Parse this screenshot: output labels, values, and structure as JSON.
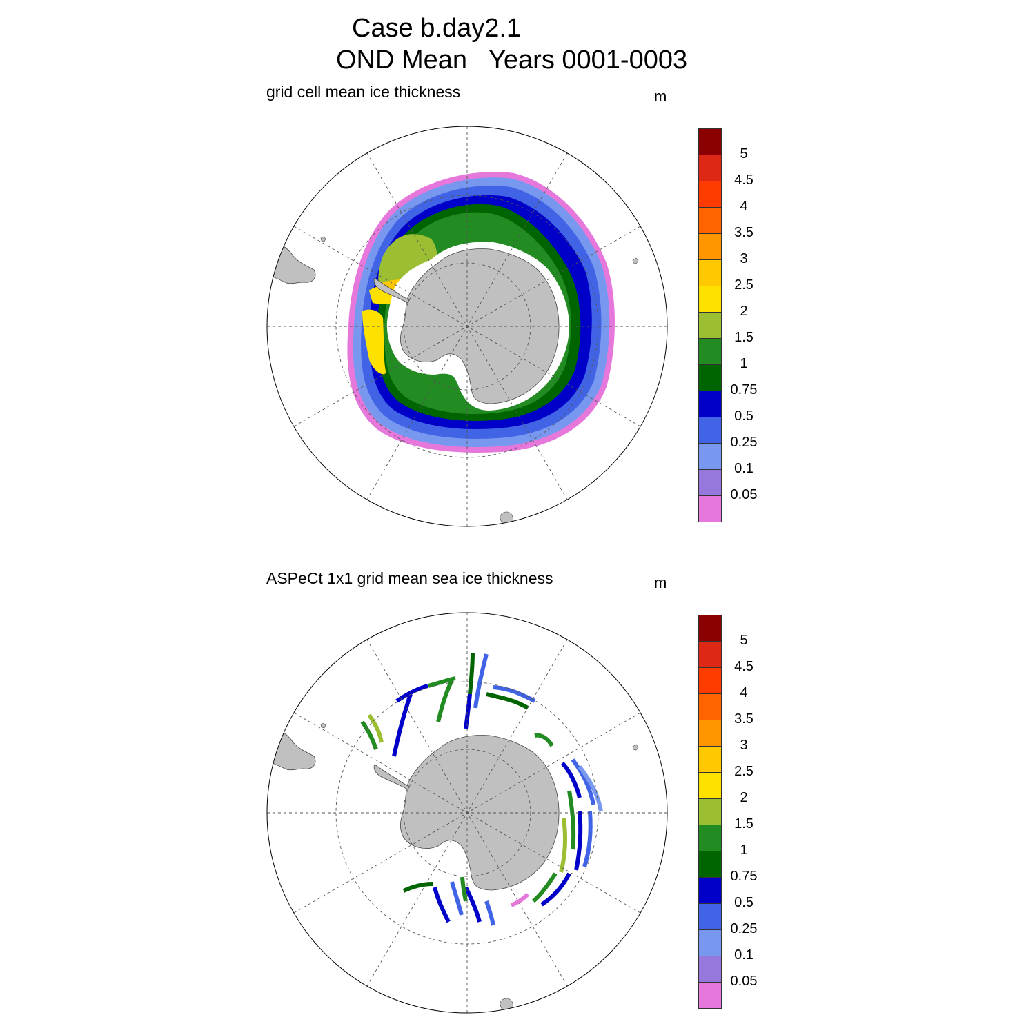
{
  "title": {
    "line1": "Case b.day2.1",
    "line2": "OND Mean   Years 0001-0003"
  },
  "colorbar": {
    "labels": [
      "5",
      "4.5",
      "4",
      "3.5",
      "3",
      "2.5",
      "2",
      "1.5",
      "1",
      "0.75",
      "0.5",
      "0.25",
      "0.1",
      "0.05"
    ],
    "colors": [
      "#8b0000",
      "#dc2814",
      "#ff3c00",
      "#ff6400",
      "#ff9600",
      "#ffc800",
      "#ffe100",
      "#9cbe32",
      "#228b22",
      "#006400",
      "#0000c8",
      "#4164e6",
      "#7898f0",
      "#9678dc",
      "#e678dc"
    ]
  },
  "colors": {
    "land": "#c0c0c0",
    "grid": "#555555",
    "ice_white": "#ffffff"
  },
  "panels": [
    {
      "title": "grid cell mean ice thickness",
      "units": "m"
    },
    {
      "title": "ASPeCt 1x1 grid mean sea ice thickness",
      "units": "m"
    }
  ]
}
